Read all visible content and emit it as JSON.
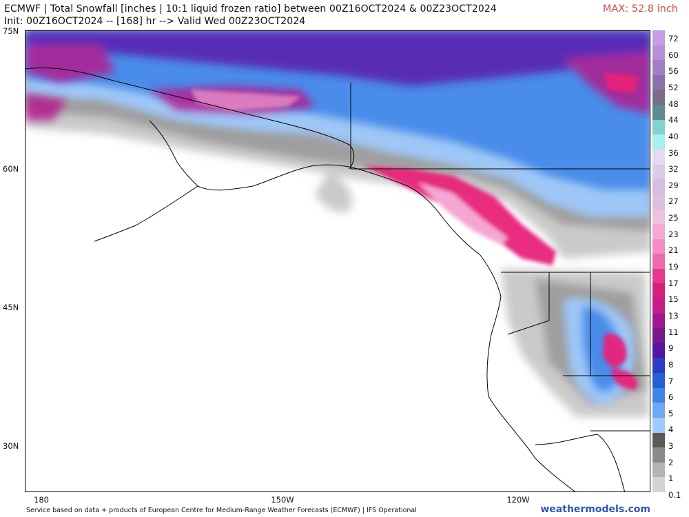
{
  "header": {
    "title_line1": "ECMWF | Total Snowfall [inches | 10:1 liquid frozen ratio] between 00Z16OCT2024 & 00Z23OCT2024",
    "title_line2": "Init: 00Z16OCT2024 -- [168] hr --> Valid Wed 00Z23OCT2024",
    "max_label": "MAX: 52.8 inch"
  },
  "map": {
    "lat_labels": [
      "75N",
      "60N",
      "45N",
      "30N"
    ],
    "lon_labels": [
      "180",
      "150W",
      "120W"
    ],
    "snow_level_colors": [
      "#c8c8c8",
      "#9a9a9a",
      "#6e6e6e",
      "#9ecbff",
      "#6fa8f5",
      "#3f86e8",
      "#1f62d6",
      "#5b1fae",
      "#b21f8f",
      "#e8207a",
      "#f5a3d2"
    ]
  },
  "colorbar": {
    "labels": [
      "72",
      "60",
      "56",
      "52",
      "48",
      "44",
      "40",
      "36",
      "32",
      "29",
      "27",
      "25",
      "23",
      "21",
      "19",
      "17",
      "15",
      "13",
      "11",
      "9",
      "8",
      "7",
      "6",
      "5",
      "4",
      "3",
      "2",
      "1",
      "0.1"
    ],
    "colors": [
      "#c79be8",
      "#b78ed8",
      "#a27fc4",
      "#8e6fad",
      "#7a6e8a",
      "#5f8a8f",
      "#7fd3d0",
      "#a8f0f0",
      "#e8d9ee",
      "#dccbe6",
      "#d5bedf",
      "#ddc0dc",
      "#efc0e0",
      "#f4a9d4",
      "#f58bc7",
      "#f06aaa",
      "#e8388e",
      "#d91f7a",
      "#c81b8c",
      "#a0188f",
      "#78188f",
      "#5514a4",
      "#2a3cc9",
      "#2460d8",
      "#3d86e8",
      "#6fa8f5",
      "#9ecbff",
      "#5a5a5a",
      "#8a8a8a",
      "#b4b4b4",
      "#d4d4d4"
    ]
  },
  "footer": {
    "source": "Service based on data + products of European Centre for Medium-Range Weather Forecasts (ECMWF) | IFS Operational",
    "brand": "weathermodels.com"
  }
}
